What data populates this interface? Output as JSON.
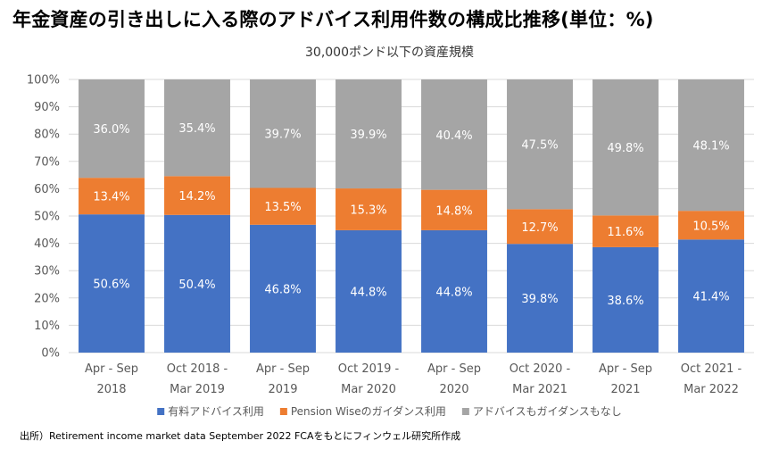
{
  "colors": {
    "series_1": "#4472C4",
    "series_2": "#ED7D31",
    "series_3": "#A5A5A5",
    "gridline": "#D9D9D9"
  },
  "chart_data": {
    "type": "bar",
    "stacked": true,
    "title": "年金資産の引き出しに入る際のアドバイス利用件数の構成比推移(単位：%)",
    "subtitle": "30,000ポンド以下の資産規模",
    "footnote": "出所）Retirement income market data September 2022 FCAをもとにフィンウェル研究所作成",
    "categories": [
      [
        "Apr - Sep",
        "2018"
      ],
      [
        "Oct 2018 -",
        "Mar 2019"
      ],
      [
        "Apr - Sep",
        "2019"
      ],
      [
        "Oct 2019 -",
        "Mar 2020"
      ],
      [
        "Apr - Sep",
        "2020"
      ],
      [
        "Oct 2020 -",
        "Mar 2021"
      ],
      [
        "Apr - Sep",
        "2021"
      ],
      [
        "Oct 2021 -",
        "Mar 2022"
      ]
    ],
    "series": [
      {
        "name": "有料アドバイス利用",
        "values": [
          50.6,
          50.4,
          46.8,
          44.8,
          44.8,
          39.8,
          38.6,
          41.4
        ],
        "labels": [
          "50.6%",
          "50.4%",
          "46.8%",
          "44.8%",
          "44.8%",
          "39.8%",
          "38.6%",
          "41.4%"
        ]
      },
      {
        "name": "Pension Wiseのガイダンス利用",
        "values": [
          13.4,
          14.2,
          13.5,
          15.3,
          14.8,
          12.7,
          11.6,
          10.5
        ],
        "labels": [
          "13.4%",
          "14.2%",
          "13.5%",
          "15.3%",
          "14.8%",
          "12.7%",
          "11.6%",
          "10.5%"
        ]
      },
      {
        "name": "アドバイスもガイダンスもなし",
        "values": [
          36.0,
          35.4,
          39.7,
          39.9,
          40.4,
          47.5,
          49.8,
          48.1
        ],
        "labels": [
          "36.0%",
          "35.4%",
          "39.7%",
          "39.9%",
          "40.4%",
          "47.5%",
          "49.8%",
          "48.1%"
        ]
      }
    ],
    "ylim": [
      0,
      100
    ],
    "yticks": [
      "0%",
      "10%",
      "20%",
      "30%",
      "40%",
      "50%",
      "60%",
      "70%",
      "80%",
      "90%",
      "100%"
    ],
    "grid": true,
    "legend": "bottom"
  }
}
